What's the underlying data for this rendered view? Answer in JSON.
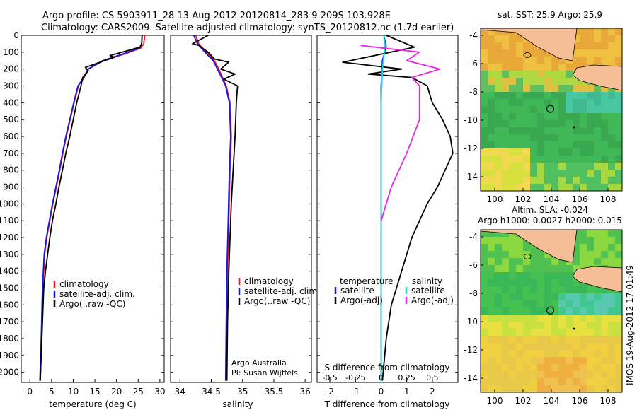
{
  "header": {
    "line1": "Argo profile: CS 5903911_28 13-Aug-2012 20120814_283 9.209S 103.928E",
    "line2": "Climatology: CARS2009. Satellite-adjusted climatology: synTS_20120812.nc (1.7d earlier)"
  },
  "side_label": "IMOS 19-Aug-2012 17:01:49",
  "colors": {
    "climatology": "#e8141e",
    "satellite": "#1a1ad8",
    "argo": "#000000",
    "cyan": "#22d8dc",
    "magenta": "#e628e6"
  },
  "chart_data": [
    {
      "type": "line",
      "panel": "temperature",
      "xlabel": "temperature (deg C)",
      "ylabel": "",
      "xlim": [
        -2,
        31
      ],
      "ylim": [
        2060,
        0
      ],
      "xticks": [
        0,
        5,
        10,
        15,
        20,
        25,
        30
      ],
      "yticks": [
        0,
        100,
        200,
        300,
        400,
        500,
        600,
        700,
        800,
        900,
        1000,
        1100,
        1200,
        1300,
        1400,
        1500,
        1600,
        1700,
        1800,
        1900,
        2000
      ],
      "legend": [
        "climatology",
        "satellite-adj. clim.",
        "Argo(..raw -QC)"
      ],
      "series": [
        {
          "name": "climatology",
          "color": "red",
          "x": [
            26.5,
            26.3,
            25.6,
            22,
            17,
            13.5,
            12.5,
            11.2,
            10.2,
            9.3,
            8.4,
            7.6,
            6.9,
            6.1,
            5.3,
            4.6,
            3.9,
            3.4,
            3.0,
            2.7,
            2.4
          ],
          "y": [
            0,
            50,
            75,
            110,
            150,
            200,
            250,
            300,
            400,
            500,
            600,
            700,
            800,
            900,
            1000,
            1100,
            1200,
            1300,
            1500,
            1800,
            2050
          ]
        },
        {
          "name": "satellite-adj. clim.",
          "color": "blue",
          "x": [
            25.9,
            25.8,
            25.3,
            21.5,
            16.8,
            13.4,
            12.4,
            11.1,
            10.1,
            9.2,
            8.3,
            7.5,
            6.8,
            6.0,
            5.2,
            4.5,
            3.8,
            3.3,
            2.9,
            2.6,
            2.3
          ],
          "y": [
            0,
            50,
            75,
            110,
            150,
            200,
            250,
            300,
            400,
            500,
            600,
            700,
            800,
            900,
            1000,
            1100,
            1200,
            1300,
            1500,
            1800,
            2050
          ]
        },
        {
          "name": "Argo(..raw -QC)",
          "color": "black",
          "x": [
            25.9,
            25.8,
            25.4,
            18.5,
            19.5,
            12.8,
            13.5,
            12.2,
            11.8,
            10.8,
            10.0,
            9.2,
            8.3,
            7.5,
            6.7,
            6.0,
            5.2,
            4.6,
            4.1,
            3.6,
            3.2,
            2.9,
            2.6,
            2.4
          ],
          "y": [
            0,
            50,
            70,
            120,
            130,
            190,
            210,
            250,
            300,
            400,
            500,
            600,
            700,
            800,
            900,
            1000,
            1100,
            1200,
            1300,
            1400,
            1500,
            1700,
            1900,
            2050
          ]
        }
      ]
    },
    {
      "type": "line",
      "panel": "salinity",
      "xlabel": "salinity",
      "ylabel": "",
      "xlim": [
        33.85,
        36.1
      ],
      "ylim": [
        2060,
        0
      ],
      "xticks": [
        34,
        34.5,
        35,
        35.5,
        36
      ],
      "legend": [
        "climatology",
        "satellite-adj. clim.",
        "Argo(..raw -QC)"
      ],
      "annotations": [
        "Argo Australia",
        "PI: Susan Wijffels"
      ],
      "series": [
        {
          "name": "climatology",
          "color": "red",
          "x": [
            34.25,
            34.3,
            34.42,
            34.55,
            34.62,
            34.74,
            34.8,
            34.82,
            34.8,
            34.78,
            34.76,
            34.75,
            34.74
          ],
          "y": [
            0,
            50,
            100,
            150,
            200,
            300,
            400,
            600,
            800,
            1100,
            1400,
            1700,
            2050
          ]
        },
        {
          "name": "satellite-adj. clim.",
          "color": "blue",
          "x": [
            34.22,
            34.28,
            34.4,
            34.53,
            34.6,
            34.73,
            34.79,
            34.81,
            34.79,
            34.77,
            34.75,
            34.74,
            34.73
          ],
          "y": [
            0,
            50,
            100,
            150,
            200,
            300,
            400,
            600,
            800,
            1100,
            1400,
            1700,
            2050
          ]
        },
        {
          "name": "Argo(..raw -QC)",
          "color": "black",
          "x": [
            34.45,
            34.2,
            34.3,
            34.45,
            34.55,
            34.78,
            34.65,
            34.88,
            34.7,
            34.92,
            34.9,
            34.88,
            34.85,
            34.82,
            34.8,
            34.78,
            34.76,
            34.75
          ],
          "y": [
            0,
            50,
            60,
            100,
            140,
            160,
            200,
            230,
            260,
            300,
            400,
            600,
            800,
            1000,
            1200,
            1400,
            1700,
            2050
          ]
        }
      ]
    },
    {
      "type": "line",
      "panel": "differences",
      "xlabel": "T difference from climatology",
      "ylabel": "",
      "xlim": [
        -2.5,
        3
      ],
      "ylim": [
        2060,
        0
      ],
      "xticks": [
        -2,
        -1,
        0,
        1,
        2
      ],
      "secondary_axis": {
        "label": "S difference from climatology",
        "ticks": [
          "-0.5",
          "-0.25",
          "0",
          "0.25",
          "0.5"
        ]
      },
      "legend_titles": [
        "temperature",
        "salinity"
      ],
      "legend": [
        "satellite",
        "Argo(-adj)",
        "satellite",
        "Argo(-adj)"
      ],
      "series": [
        {
          "name": "temperature satellite",
          "color": "blue",
          "x": [
            0.1,
            0.2,
            0.05,
            0.0,
            0.0,
            0.0,
            0.0,
            0.0
          ],
          "y": [
            0,
            60,
            150,
            300,
            600,
            1000,
            1500,
            2050
          ]
        },
        {
          "name": "temperature Argo(-adj)",
          "color": "black",
          "x": [
            0.2,
            1.3,
            -1.5,
            0.8,
            -0.5,
            1.2,
            1.8,
            2.0,
            2.4,
            2.7,
            2.8,
            2.5,
            2.2,
            1.8,
            1.2,
            0.8,
            0.4,
            0.2,
            0.05
          ],
          "y": [
            0,
            70,
            160,
            200,
            230,
            250,
            300,
            400,
            500,
            600,
            700,
            800,
            900,
            1000,
            1200,
            1400,
            1600,
            1800,
            2050
          ]
        },
        {
          "name": "salinity satellite",
          "color": "cyan",
          "x": [
            0.1,
            0.15,
            0.05,
            0.0,
            0.0,
            0.0,
            0.0
          ],
          "y": [
            0,
            60,
            200,
            400,
            800,
            1300,
            2050
          ]
        },
        {
          "name": "salinity Argo(-adj)",
          "color": "magenta",
          "x": [
            -0.8,
            1.5,
            1.0,
            2.3,
            1.2,
            1.5,
            1.5,
            1.0,
            0.4,
            0.0
          ],
          "y": [
            60,
            100,
            150,
            200,
            250,
            300,
            500,
            700,
            900,
            1100
          ]
        }
      ]
    },
    {
      "type": "heatmap",
      "panel": "sst_map",
      "title": "sat. SST: 25.9 Argo: 25.9",
      "xlim": [
        99,
        109
      ],
      "ylim": [
        -15,
        -3.5
      ],
      "xticks": [
        100,
        102,
        104,
        106,
        108
      ],
      "yticks": [
        -4,
        -6,
        -8,
        -10,
        -12,
        -14
      ],
      "profile_location": [
        103.928,
        -9.209
      ]
    },
    {
      "type": "heatmap",
      "panel": "sla_map",
      "title": "Altim. SLA: -0.024",
      "subtitle": "Argo h1000: 0.0027 h2000: 0.015",
      "xlim": [
        99,
        109
      ],
      "ylim": [
        -15,
        -3.5
      ],
      "xticks": [
        100,
        102,
        104,
        106,
        108
      ],
      "yticks": [
        -4,
        -6,
        -8,
        -10,
        -12,
        -14
      ],
      "profile_location": [
        103.928,
        -9.209
      ]
    }
  ]
}
